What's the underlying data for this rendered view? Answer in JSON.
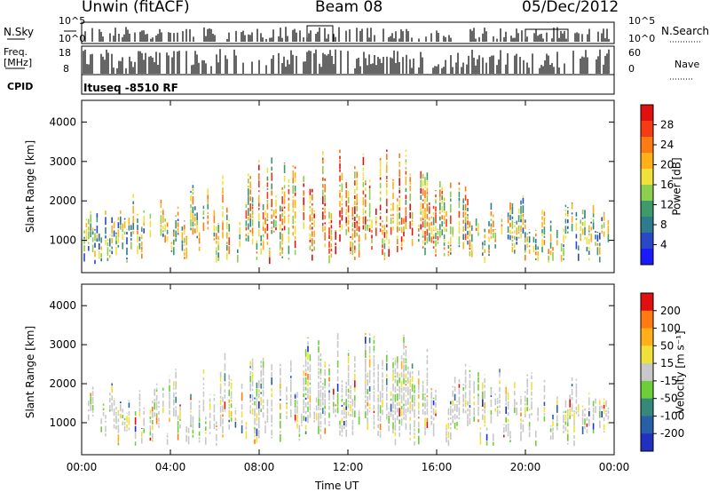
{
  "header": {
    "radar": "Unwin (fitACF)",
    "beam": "Beam 08",
    "date": "05/Dec/2012"
  },
  "top_panels": {
    "nsky_label": "N.Sky",
    "nsearch_label": "N.Search",
    "freq_label": "Freq.",
    "freq_unit": "[MHz]",
    "nave_label": "Nave",
    "cpid_label": "CPID",
    "cpid_text": "Ituseq -8510 RF",
    "noise_ticks_left": [
      "10^5",
      "10^0"
    ],
    "noise_ticks_right": [
      "10^5",
      "10^0"
    ],
    "freq_ticks": [
      "18",
      "8"
    ],
    "nave_ticks": [
      "60",
      "0"
    ]
  },
  "chart_data": [
    {
      "type": "heatmap",
      "name": "power",
      "ylabel": "Slant Range [km]",
      "xlabel": "Time UT",
      "xticks": [
        "00:00",
        "04:00",
        "08:00",
        "12:00",
        "16:00",
        "20:00",
        "00:00"
      ],
      "yticks": [
        "1000",
        "2000",
        "3000",
        "4000"
      ],
      "ylim": [
        180,
        4550
      ],
      "colorbar": {
        "label": "Power [dB]",
        "ticks": [
          "4",
          "8",
          "12",
          "16",
          "20",
          "24",
          "28"
        ],
        "colors": [
          "#1a1aff",
          "#2848c8",
          "#2e7a8e",
          "#3f9a6a",
          "#8ccf4f",
          "#f0e03a",
          "#ffb018",
          "#ff7a10",
          "#f53a14",
          "#e01010"
        ]
      },
      "data_extent": {
        "x_hours": [
          0,
          24
        ],
        "range_km": [
          300,
          3300
        ]
      }
    },
    {
      "type": "heatmap",
      "name": "velocity",
      "ylabel": "Slant Range [km]",
      "xlabel": "Time UT",
      "xticks": [
        "00:00",
        "04:00",
        "08:00",
        "12:00",
        "16:00",
        "20:00",
        "00:00"
      ],
      "yticks": [
        "1000",
        "2000",
        "3000",
        "4000"
      ],
      "ylim": [
        180,
        4550
      ],
      "colorbar": {
        "label": "Velocity [m s⁻¹]",
        "ticks": [
          "200",
          "100",
          "50",
          "15",
          "-15",
          "-50",
          "-100",
          "-200"
        ],
        "colors": [
          "#2030c0",
          "#2860a8",
          "#36887a",
          "#6ccf3a",
          "#c8c8c8",
          "#f0e03a",
          "#ffb018",
          "#ff7a10",
          "#e01010"
        ]
      },
      "data_extent": {
        "x_hours": [
          0,
          24
        ],
        "range_km": [
          300,
          3300
        ]
      }
    }
  ]
}
